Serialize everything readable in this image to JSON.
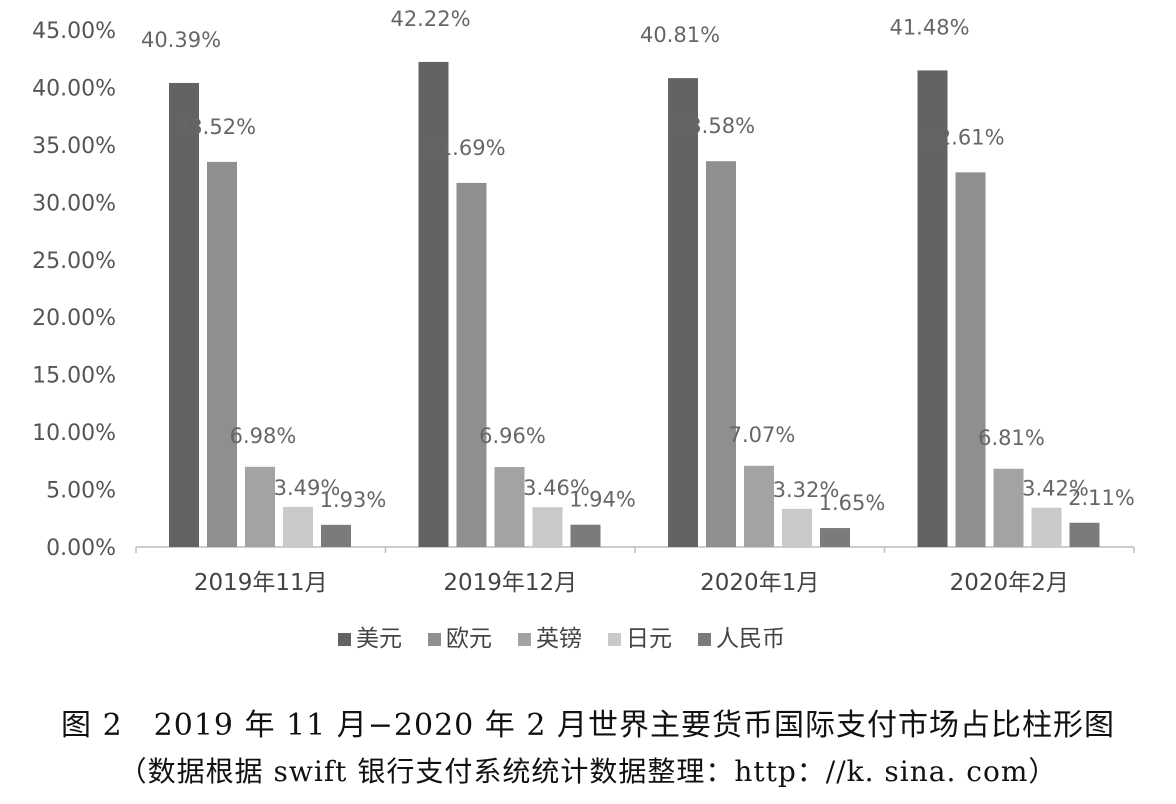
{
  "chart_data": {
    "type": "bar",
    "categories": [
      "2019年11月",
      "2019年12月",
      "2020年1月",
      "2020年2月"
    ],
    "series": [
      {
        "name": "美元",
        "values": [
          40.39,
          42.22,
          40.81,
          41.48
        ],
        "labels": [
          "40.39%",
          "42.22%",
          "40.81%",
          "41.48%"
        ],
        "color": "#636363"
      },
      {
        "name": "欧元",
        "values": [
          33.52,
          31.69,
          33.58,
          32.61
        ],
        "labels": [
          "33.52%",
          "31.69%",
          "33.58%",
          "32.61%"
        ],
        "color": "#8f8f8f"
      },
      {
        "name": "英镑",
        "values": [
          6.98,
          6.96,
          7.07,
          6.81
        ],
        "labels": [
          "6.98%",
          "6.96%",
          "7.07%",
          "6.81%"
        ],
        "color": "#a3a3a3"
      },
      {
        "name": "日元",
        "values": [
          3.49,
          3.46,
          3.32,
          3.42
        ],
        "labels": [
          "3.49%",
          "3.46%",
          "3.32%",
          "3.42%"
        ],
        "color": "#c9c9c9"
      },
      {
        "name": "人民币",
        "values": [
          1.93,
          1.94,
          1.65,
          2.11
        ],
        "labels": [
          "1.93%",
          "1.94%",
          "1.65%",
          "2.11%"
        ],
        "color": "#7b7b7b"
      }
    ],
    "yticks": [
      "0.00%",
      "5.00%",
      "10.00%",
      "15.00%",
      "20.00%",
      "25.00%",
      "30.00%",
      "35.00%",
      "40.00%",
      "45.00%"
    ],
    "ylim": [
      0,
      45
    ],
    "grid": false,
    "legend_position": "bottom"
  },
  "caption": {
    "title": "图 2　2019 年 11 月−2020 年 2 月世界主要货币国际支付市场占比柱形图",
    "source": "（数据根据 swift 银行支付系统统计数据整理：http：//k. sina. com）"
  }
}
